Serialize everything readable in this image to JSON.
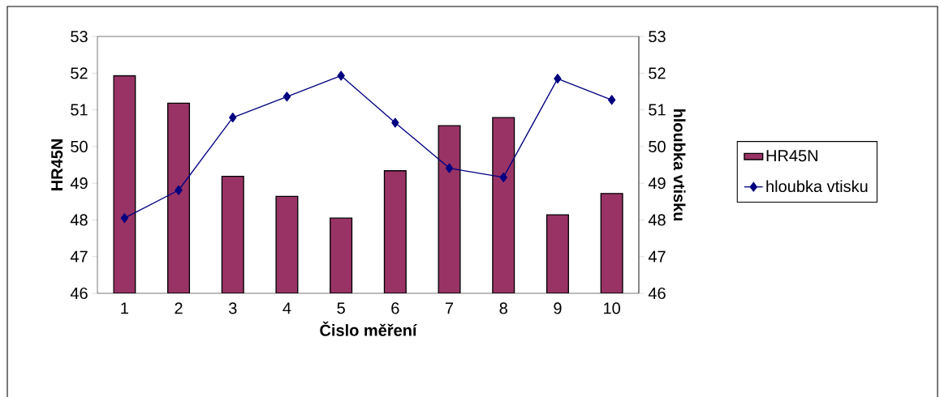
{
  "chart_data": {
    "type": "bar",
    "xlabel": "Čislo měření",
    "ylabel": "HR45N",
    "y2label": "hloubka vtisku",
    "categories": [
      "1",
      "2",
      "3",
      "4",
      "5",
      "6",
      "7",
      "8",
      "9",
      "10"
    ],
    "series": [
      {
        "name": "HR45N",
        "color": "#993366",
        "values": [
          51.93,
          51.18,
          49.19,
          48.64,
          48.05,
          49.34,
          50.57,
          50.79,
          48.14,
          48.72
        ]
      },
      {
        "name": "hloubka vtisku",
        "type": "line",
        "axis": "y2",
        "marker": "diamond",
        "color": "#000080",
        "values": [
          48.05,
          48.81,
          50.79,
          51.36,
          51.93,
          50.65,
          49.41,
          49.16,
          51.85,
          51.27
        ]
      }
    ],
    "ylim": [
      46,
      53
    ],
    "yticks": [
      46,
      47,
      48,
      49,
      50,
      51,
      52,
      53
    ],
    "y2lim": [
      46,
      53
    ],
    "y2ticks": [
      46,
      47,
      48,
      49,
      50,
      51,
      52,
      53
    ],
    "legend": "right"
  }
}
